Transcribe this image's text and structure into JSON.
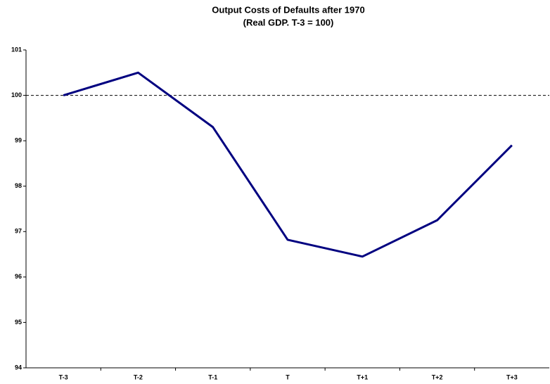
{
  "chart_data": {
    "type": "line",
    "title": "Output Costs of Defaults after 1970",
    "subtitle": "(Real GDP. T-3 = 100)",
    "categories": [
      "T-3",
      "T-2",
      "T-1",
      "T",
      "T+1",
      "T+2",
      "T+3"
    ],
    "series": [
      {
        "name": "Real GDP",
        "color": "#000080",
        "values": [
          100,
          100.5,
          99.3,
          96.82,
          96.45,
          97.25,
          98.9
        ]
      }
    ],
    "ylim": [
      94,
      101
    ],
    "yticks": [
      94,
      95,
      96,
      97,
      98,
      99,
      100,
      101
    ],
    "reference_line": 100,
    "grid": false,
    "legend": false
  }
}
